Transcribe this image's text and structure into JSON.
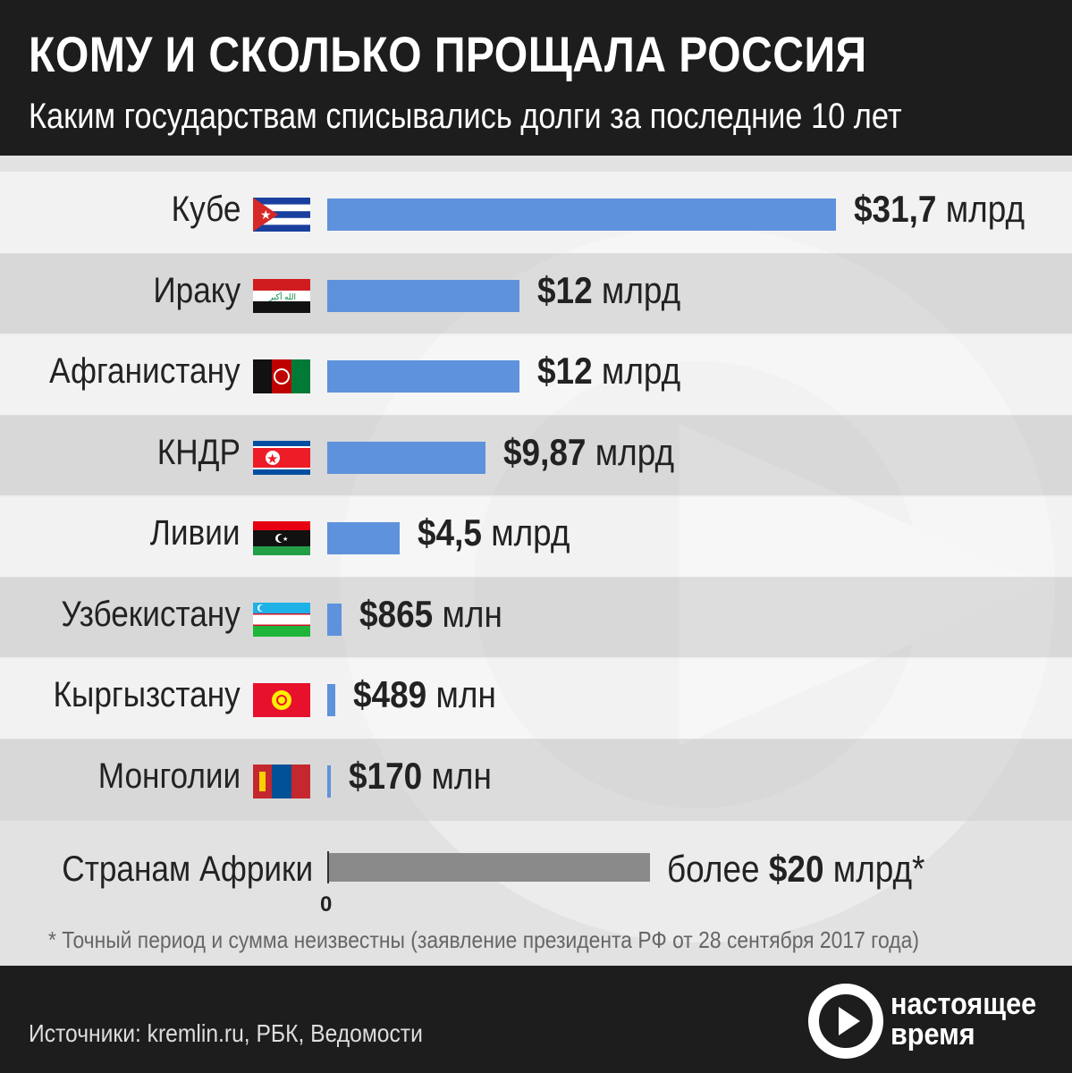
{
  "header": {
    "title": "КОМУ И СКОЛЬКО ПРОЩАЛА РОССИЯ",
    "subtitle": "Каким государствам списывались долги за последние 10 лет"
  },
  "chart_data": {
    "type": "bar",
    "orientation": "horizontal",
    "unit": "$ млрд",
    "categories": [
      "Кубе",
      "Ираку",
      "Афганистану",
      "КНДР",
      "Ливии",
      "Узбекистану",
      "Кыргызстану",
      "Монголии",
      "Странам Африки"
    ],
    "values": [
      31.7,
      12,
      12,
      9.87,
      4.5,
      0.865,
      0.489,
      0.17,
      20
    ],
    "value_labels": [
      {
        "num": "$31,7",
        "unit": "млрд"
      },
      {
        "num": "$12",
        "unit": "млрд"
      },
      {
        "num": "$12",
        "unit": "млрд"
      },
      {
        "num": "$9,87",
        "unit": "млрд"
      },
      {
        "num": "$4,5",
        "unit": "млрд"
      },
      {
        "num": "$865",
        "unit": "млн"
      },
      {
        "num": "$489",
        "unit": "млн"
      },
      {
        "num": "$170",
        "unit": "млн"
      }
    ],
    "africa_label": {
      "prefix": "более",
      "num": "$20",
      "unit": "млрд*"
    },
    "flags": [
      "cuba",
      "iraq",
      "afghanistan",
      "north-korea",
      "libya",
      "uzbekistan",
      "kyrgyzstan",
      "mongolia"
    ],
    "axis_zero_label": "0",
    "xlim": [
      0,
      31.7
    ],
    "colors": {
      "bar": "#5e92dc",
      "africa_bar": "#8a8a8a"
    }
  },
  "footnote": "* Точный период и сумма неизвестны (заявление президента РФ от 28 сентября 2017 года)",
  "footer": {
    "sources": "Источники: kremlin.ru, РБК, Ведомости",
    "logo_line1": "настоящее",
    "logo_line2": "время",
    "logo_icon": "play-arrow-icon"
  }
}
